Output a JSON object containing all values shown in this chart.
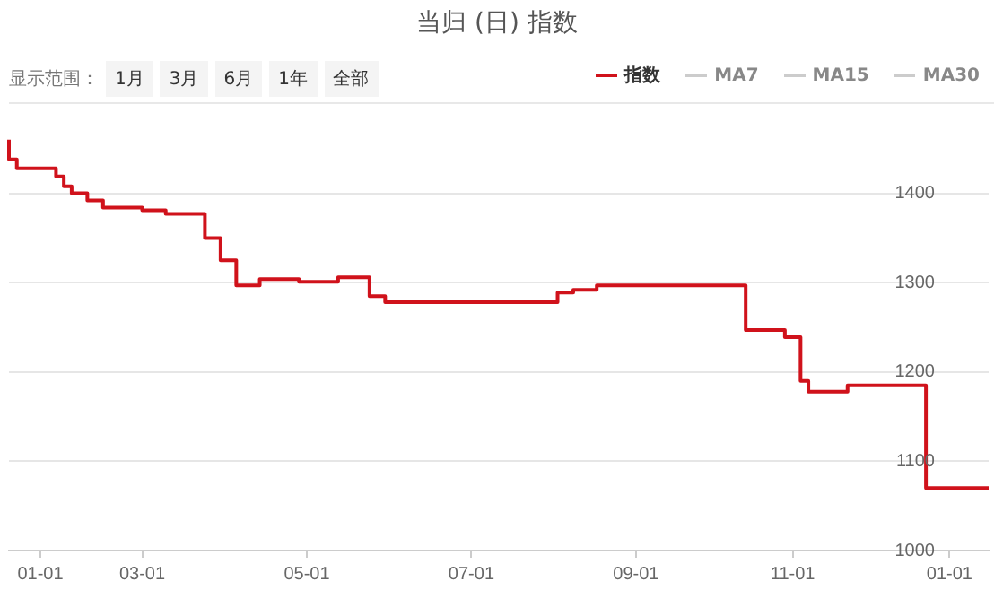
{
  "chart_data": {
    "type": "step",
    "title": "当归 (日) 指数",
    "annotations": [
      "显示范围：",
      "1月",
      "3月",
      "6月",
      "1年",
      "全部"
    ],
    "categories": [
      null,
      null,
      null,
      null,
      "01-01",
      null,
      null,
      null,
      null,
      null,
      null,
      null,
      null,
      null,
      null,
      null,
      null,
      "03-01",
      null,
      null,
      null,
      null,
      null,
      null,
      null,
      null,
      null,
      null,
      null,
      null,
      null,
      null,
      null,
      null,
      null,
      null,
      null,
      null,
      "05-01",
      null,
      null,
      null,
      null,
      null,
      null,
      null,
      null,
      null,
      null,
      null,
      null,
      null,
      null,
      null,
      null,
      null,
      null,
      null,
      null,
      "07-01",
      null,
      null,
      null,
      null,
      null,
      null,
      null,
      null,
      null,
      null,
      null,
      null,
      null,
      null,
      null,
      null,
      null,
      null,
      null,
      null,
      "09-01",
      null,
      null,
      null,
      null,
      null,
      null,
      null,
      null,
      null,
      null,
      null,
      null,
      null,
      null,
      null,
      null,
      null,
      null,
      null,
      "11-01",
      null,
      null,
      null,
      null,
      null,
      null,
      null,
      null,
      null,
      null,
      null,
      null,
      null,
      null,
      null,
      null,
      null,
      null,
      null,
      "01-01",
      null,
      null,
      null,
      null,
      null
    ],
    "series": [
      {
        "name": "指数",
        "color": "#d0121b",
        "values": [
          1460,
          1438,
          1428,
          1428,
          1428,
          1428,
          1428,
          1419,
          1408,
          1400,
          1400,
          1392,
          1392,
          1384,
          1384,
          1384,
          1384,
          1384,
          1381,
          1381,
          1381,
          1377,
          1377,
          1377,
          1377,
          1377,
          1350,
          1350,
          1325,
          1325,
          1297,
          1297,
          1297,
          1304,
          1304,
          1304,
          1304,
          1304,
          1301,
          1301,
          1301,
          1301,
          1301,
          1306,
          1306,
          1306,
          1306,
          1285,
          1285,
          1278,
          1278,
          1278,
          1278,
          1278,
          1278,
          1278,
          1278,
          1278,
          1278,
          1278,
          1278,
          1278,
          1278,
          1278,
          1278,
          1278,
          1278,
          1278,
          1278,
          1278,
          1278,
          1289,
          1289,
          1292,
          1292,
          1292,
          1297,
          1297,
          1297,
          1297,
          1297,
          1297,
          1297,
          1297,
          1297,
          1297,
          1297,
          1297,
          1297,
          1297,
          1297,
          1297,
          1297,
          1297,
          1297,
          1247,
          1247,
          1247,
          1247,
          1247,
          1239,
          1239,
          1190,
          1178,
          1178,
          1178,
          1178,
          1178,
          1185,
          1185,
          1185,
          1185,
          1185,
          1185,
          1185,
          1185,
          1185,
          1185,
          1070,
          1070,
          1070,
          1070,
          1070,
          1070,
          1070,
          1070
        ]
      },
      {
        "name": "MA7",
        "color": "#cccccc",
        "values": [
          null,
          null,
          null,
          null,
          null,
          null,
          null,
          null,
          null,
          null,
          null,
          null,
          null,
          null,
          null,
          null,
          null,
          null,
          null,
          null,
          null,
          null,
          null,
          null,
          null,
          null,
          null,
          null,
          null,
          null,
          null,
          null,
          null,
          null,
          null,
          null,
          null,
          null,
          null,
          null,
          null,
          null,
          null,
          null,
          null,
          null,
          null,
          null,
          null,
          null,
          null,
          null,
          null,
          null,
          null,
          null,
          null,
          null,
          null,
          null,
          null,
          null,
          null,
          null,
          null,
          null,
          null,
          null,
          null,
          null,
          null,
          null,
          null,
          null,
          null,
          null,
          null,
          null,
          null,
          null,
          null,
          null,
          null,
          null,
          null,
          null,
          null,
          null,
          null,
          null,
          null,
          null,
          null,
          null,
          null,
          null,
          null,
          null,
          null,
          null,
          null,
          null,
          null,
          null,
          null,
          null,
          null,
          null,
          null,
          null,
          null,
          null,
          null,
          null,
          null,
          null,
          null,
          null,
          null,
          null,
          null,
          null,
          null,
          null,
          null,
          null
        ]
      },
      {
        "name": "MA15",
        "color": "#cccccc",
        "values": [
          null,
          null,
          null,
          null,
          null,
          null,
          null,
          null,
          null,
          null,
          null,
          null,
          null,
          null,
          null,
          null,
          null,
          null,
          null,
          null,
          null,
          null,
          null,
          null,
          null,
          null,
          null,
          null,
          null,
          null,
          null,
          null,
          null,
          null,
          null,
          null,
          null,
          null,
          null,
          null,
          null,
          null,
          null,
          null,
          null,
          null,
          null,
          null,
          null,
          null,
          null,
          null,
          null,
          null,
          null,
          null,
          null,
          null,
          null,
          null,
          null,
          null,
          null,
          null,
          null,
          null,
          null,
          null,
          null,
          null,
          null,
          null,
          null,
          null,
          null,
          null,
          null,
          null,
          null,
          null,
          null,
          null,
          null,
          null,
          null,
          null,
          null,
          null,
          null,
          null,
          null,
          null,
          null,
          null,
          null,
          null,
          null,
          null,
          null,
          null,
          null,
          null,
          null,
          null,
          null,
          null,
          null,
          null,
          null,
          null,
          null,
          null,
          null,
          null,
          null,
          null,
          null,
          null,
          null,
          null,
          null,
          null,
          null,
          null,
          null,
          null
        ]
      },
      {
        "name": "MA30",
        "color": "#cccccc",
        "values": [
          null,
          null,
          null,
          null,
          null,
          null,
          null,
          null,
          null,
          null,
          null,
          null,
          null,
          null,
          null,
          null,
          null,
          null,
          null,
          null,
          null,
          null,
          null,
          null,
          null,
          null,
          null,
          null,
          null,
          null,
          null,
          null,
          null,
          null,
          null,
          null,
          null,
          null,
          null,
          null,
          null,
          null,
          null,
          null,
          null,
          null,
          null,
          null,
          null,
          null,
          null,
          null,
          null,
          null,
          null,
          null,
          null,
          null,
          null,
          null,
          null,
          null,
          null,
          null,
          null,
          null,
          null,
          null,
          null,
          null,
          null,
          null,
          null,
          null,
          null,
          null,
          null,
          null,
          null,
          null,
          null,
          null,
          null,
          null,
          null,
          null,
          null,
          null,
          null,
          null,
          null,
          null,
          null,
          null,
          null,
          null,
          null,
          null,
          null,
          null,
          null,
          null,
          null,
          null,
          null,
          null,
          null,
          null,
          null,
          null,
          null,
          null,
          null,
          null,
          null,
          null,
          null,
          null,
          null,
          null,
          null,
          null,
          null,
          null,
          null,
          null
        ]
      }
    ],
    "ylim": [
      1000,
      1500
    ],
    "yticks": [
      1000,
      1100,
      1200,
      1300,
      1400
    ],
    "grid": "y",
    "legend": "top right",
    "marker": "none",
    "line_style": "solid"
  }
}
